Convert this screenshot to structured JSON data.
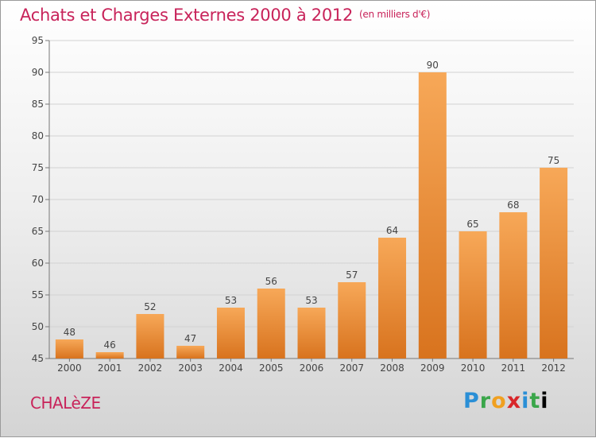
{
  "title": "Achats et Charges Externes 2000 à 2012",
  "unit": "(en milliers d'€)",
  "commune": "CHALèZE",
  "logo": "Proxiti",
  "colors": {
    "title": "#c8235a",
    "bar_top": "#f7a858",
    "bar_bottom": "#d8731e"
  },
  "chart_data": {
    "type": "bar",
    "title": "Achats et Charges Externes 2000 à 2012",
    "xlabel": "",
    "ylabel": "",
    "categories": [
      "2000",
      "2001",
      "2002",
      "2003",
      "2004",
      "2005",
      "2006",
      "2007",
      "2008",
      "2009",
      "2010",
      "2011",
      "2012"
    ],
    "values": [
      48,
      46,
      52,
      47,
      53,
      56,
      53,
      57,
      64,
      90,
      65,
      68,
      75
    ],
    "ylim": [
      45,
      95
    ],
    "yticks": [
      45,
      50,
      55,
      60,
      65,
      70,
      75,
      80,
      85,
      90,
      95
    ],
    "grid": true,
    "legend": "none"
  }
}
